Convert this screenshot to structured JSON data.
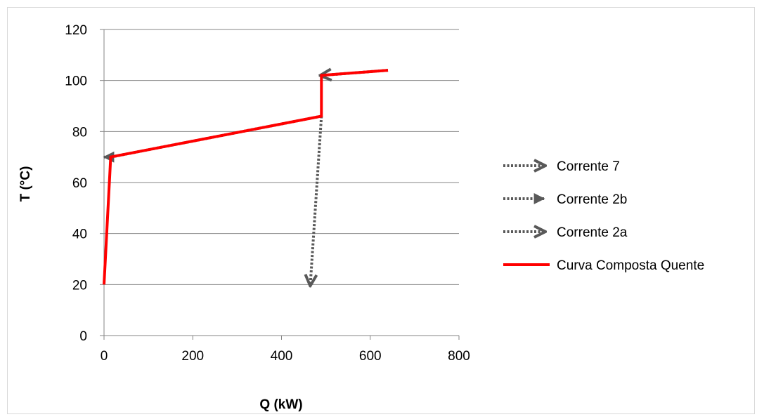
{
  "chart_data": {
    "type": "line",
    "title": "",
    "xlabel": "Q (kW)",
    "ylabel": "T (°C)",
    "xlim": [
      0,
      800
    ],
    "ylim": [
      0,
      120
    ],
    "x_ticks": [
      0,
      200,
      400,
      600,
      800
    ],
    "y_ticks": [
      0,
      20,
      40,
      60,
      80,
      100,
      120
    ],
    "x_tick_labels": [
      "0",
      "200",
      "400",
      "600",
      "800"
    ],
    "y_tick_labels": [
      "0",
      "20",
      "40",
      "60",
      "80",
      "100",
      "120"
    ],
    "grid": "horizontal",
    "legend_position": "right",
    "series": [
      {
        "name": "Corrente 7",
        "style": "dotted-open-arrow",
        "color": "#595959",
        "points": [
          [
            640,
            104
          ],
          [
            490,
            102
          ]
        ]
      },
      {
        "name": "Corrente 2b",
        "style": "dotted-triangle-arrow",
        "color": "#595959",
        "points": [
          [
            490,
            86
          ],
          [
            15,
            70
          ],
          [
            0,
            70
          ]
        ]
      },
      {
        "name": "Corrente 2a",
        "style": "dotted-open-arrow",
        "color": "#595959",
        "points": [
          [
            490,
            86
          ],
          [
            465,
            20
          ]
        ]
      },
      {
        "name": "Curva Composta Quente",
        "style": "solid",
        "color": "#ff0000",
        "points": [
          [
            0,
            20
          ],
          [
            15,
            70
          ],
          [
            490,
            86
          ],
          [
            490,
            102
          ],
          [
            640,
            104
          ]
        ]
      }
    ]
  }
}
